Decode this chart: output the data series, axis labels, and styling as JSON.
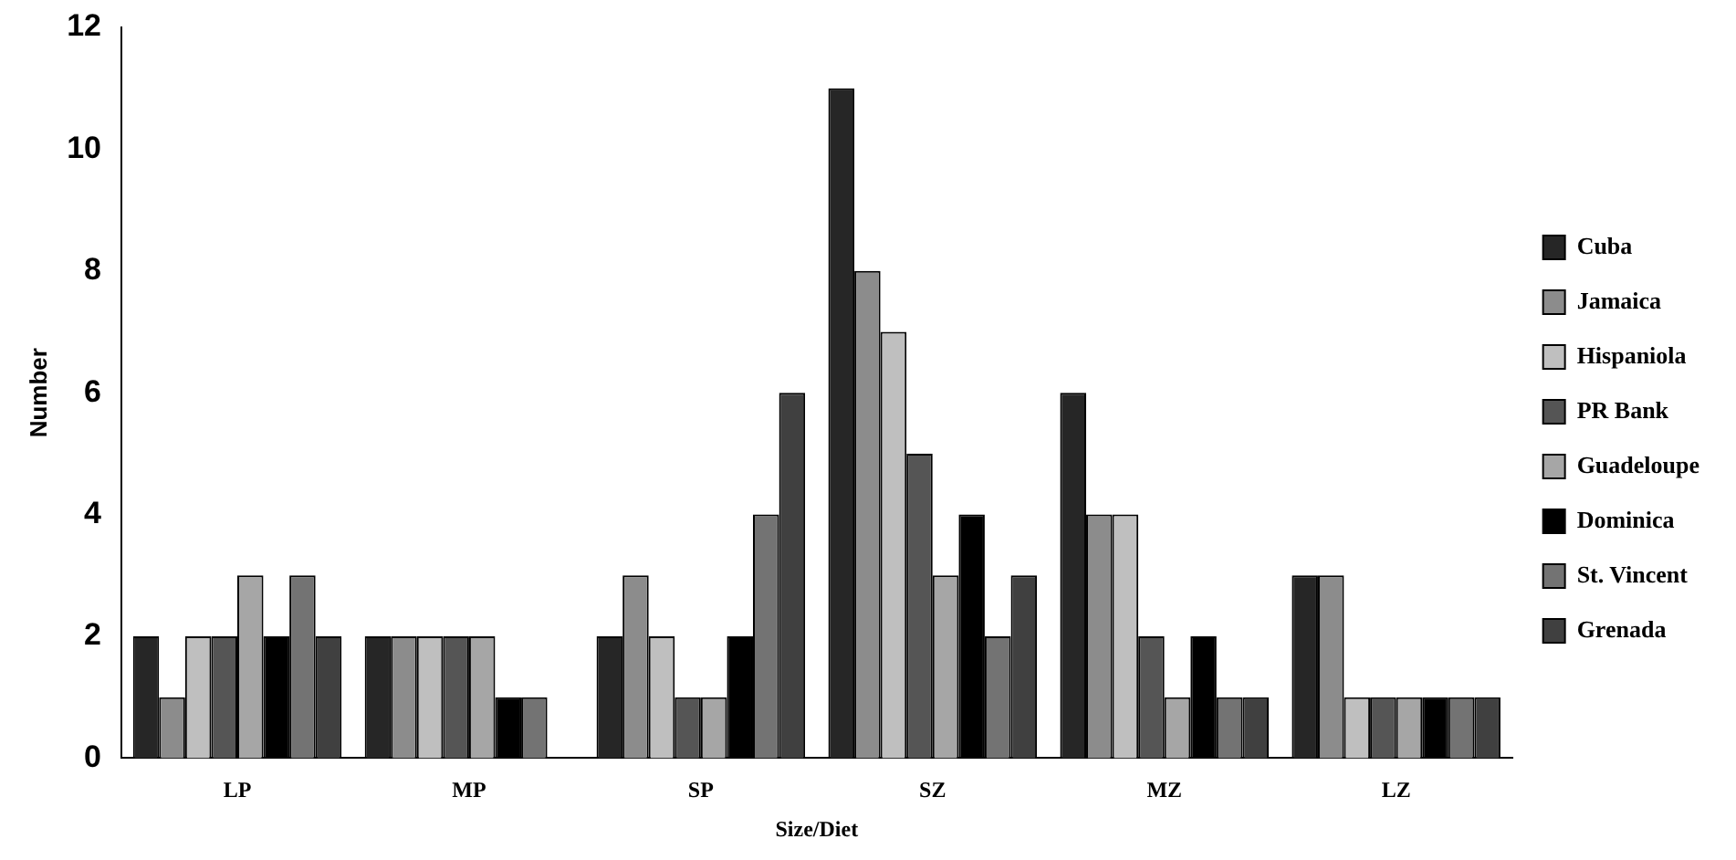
{
  "chart_data": {
    "type": "bar",
    "xlabel": "Size/Diet",
    "ylabel": "Number",
    "categories": [
      "LP",
      "MP",
      "SP",
      "SZ",
      "MZ",
      "LZ"
    ],
    "series": [
      {
        "name": "Cuba",
        "color": "#262626",
        "values": [
          2,
          2,
          2,
          11,
          6,
          3
        ]
      },
      {
        "name": "Jamaica",
        "color": "#8c8c8c",
        "values": [
          1,
          2,
          3,
          8,
          4,
          3
        ]
      },
      {
        "name": "Hispaniola",
        "color": "#bfbfbf",
        "values": [
          2,
          2,
          2,
          7,
          4,
          1
        ]
      },
      {
        "name": "PR Bank",
        "color": "#555555",
        "values": [
          2,
          2,
          1,
          5,
          2,
          1
        ]
      },
      {
        "name": "Guadeloupe",
        "color": "#a6a6a6",
        "values": [
          3,
          2,
          1,
          3,
          1,
          1
        ]
      },
      {
        "name": "Dominica",
        "color": "#000000",
        "values": [
          2,
          1,
          2,
          4,
          2,
          1
        ]
      },
      {
        "name": "St. Vincent",
        "color": "#737373",
        "values": [
          3,
          1,
          4,
          2,
          1,
          1
        ]
      },
      {
        "name": "Grenada",
        "color": "#404040",
        "values": [
          2,
          0,
          6,
          3,
          1,
          1
        ]
      }
    ],
    "ylim": [
      0,
      12
    ],
    "yticks": [
      0,
      2,
      4,
      6,
      8,
      10,
      12
    ],
    "grid": false,
    "legend": "right"
  }
}
